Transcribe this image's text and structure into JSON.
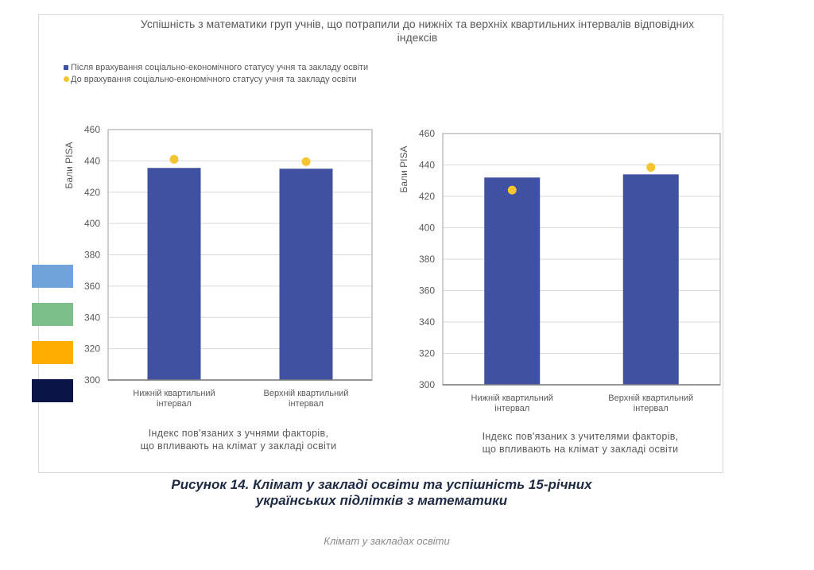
{
  "figure": {
    "caption": "Рисунок 14. Клімат у закладі освіти та успішність 15-річних українських підлітків з математики",
    "caption_line1": "Рисунок 14. Клімат у закладі освіти та успішність 15-річних",
    "caption_line2": "українських підлітків з математики",
    "footer": "Клімат у закладах освіти",
    "swatch_colors": [
      "#6fa3d9",
      "#7dbf8a",
      "#ffad00",
      "#0a1446"
    ]
  },
  "chart_data": [
    {
      "type": "bar",
      "title": "Успішність з математики груп учнів, що потрапили до нижніх та верхніх квартильних інтервалів відповідних індексів",
      "legend": [
        "Після врахування соціально-економічного статусу учня та закладу освіти",
        "До врахування соціально-економічного статусу учня та закладу освіти"
      ],
      "legend_placement": "top-left",
      "categories": [
        "Нижній квартильний інтервал",
        "Верхній квартильний інтервал"
      ],
      "categories_lines": [
        [
          "Нижній квартильний",
          "інтервал"
        ],
        [
          "Верхній квартильний",
          "інтервал"
        ]
      ],
      "series": [
        {
          "name": "Після врахування соціально-економічного статусу учня та закладу освіти",
          "kind": "bar",
          "color": "#3f51a0",
          "values": [
            435.5,
            435
          ]
        },
        {
          "name": "До врахування соціально-економічного статусу учня та закладу освіти",
          "kind": "point",
          "color": "#f5c431",
          "values": [
            441,
            439.5
          ]
        }
      ],
      "xlabel": "Індекс пов'язаних з учнями факторів, що впливають на клімат у закладі освіти",
      "xlabel_lines": [
        "Індекс пов'язаних з учнями факторів,",
        "що впливають на клімат у закладі освіти"
      ],
      "ylabel": "Бали PISA",
      "ylim": [
        300,
        460
      ],
      "yticks": [
        300,
        320,
        340,
        360,
        380,
        400,
        420,
        440,
        460
      ],
      "grid": true
    },
    {
      "type": "bar",
      "categories": [
        "Нижній квартильний інтервал",
        "Верхній квартильний інтервал"
      ],
      "categories_lines": [
        [
          "Нижній квартильний",
          "інтервал"
        ],
        [
          "Верхній квартильний",
          "інтервал"
        ]
      ],
      "series": [
        {
          "name": "Після врахування соціально-економічного статусу учня та закладу освіти",
          "kind": "bar",
          "color": "#3f51a0",
          "values": [
            432,
            434
          ]
        },
        {
          "name": "До врахування соціально-економічного статусу учня та закладу освіти",
          "kind": "point",
          "color": "#f5c431",
          "values": [
            424,
            438.5
          ]
        }
      ],
      "xlabel": "Індекс пов'язаних з учителями факторів, що впливають на клімат у закладі освіти",
      "xlabel_lines": [
        "Індекс пов'язаних з учителями факторів,",
        "що впливають на клімат у закладі освіти"
      ],
      "ylabel": "Бали PISA",
      "ylim": [
        300,
        460
      ],
      "yticks": [
        300,
        320,
        340,
        360,
        380,
        400,
        420,
        440,
        460
      ],
      "grid": true
    }
  ]
}
